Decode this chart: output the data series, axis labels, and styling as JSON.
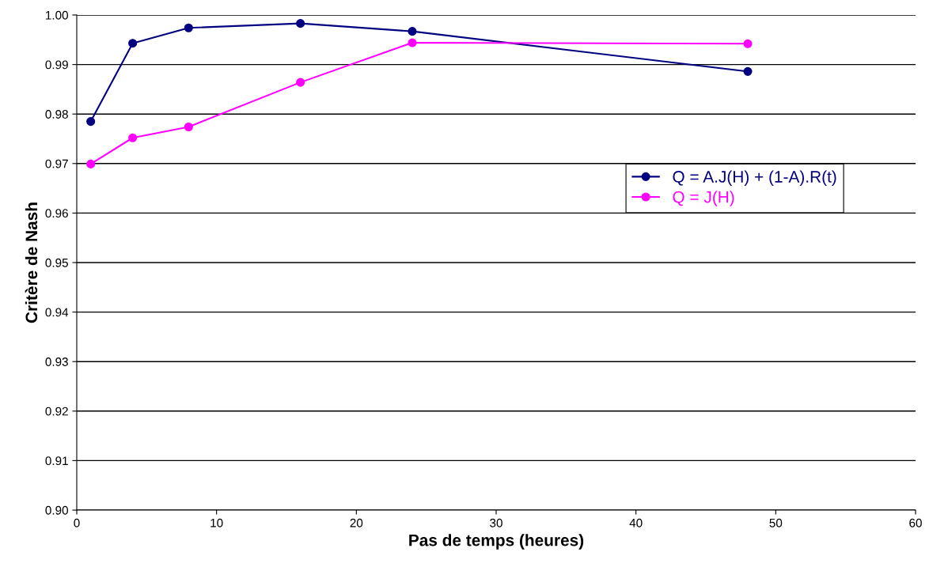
{
  "chart_data": {
    "type": "line",
    "xlabel": "Pas de temps (heures)",
    "ylabel": "Critère de Nash",
    "x": [
      1,
      4,
      8,
      16,
      24,
      48
    ],
    "series": [
      {
        "name": "Q = A.J(H) + (1-A).R(t)",
        "color": "#000080",
        "values": [
          0.9785,
          0.9943,
          0.9974,
          0.9983,
          0.9967,
          0.9886
        ]
      },
      {
        "name": "Q = J(H)",
        "color": "#ff00ff",
        "values": [
          0.9699,
          0.9752,
          0.9774,
          0.9864,
          0.9944,
          0.9942
        ]
      }
    ],
    "xlim": [
      0,
      60
    ],
    "xticks": [
      0,
      10,
      20,
      30,
      40,
      50,
      60
    ],
    "ylim": [
      0.9,
      1.0
    ],
    "yticks": [
      {
        "value": 0.9,
        "label": "0.90"
      },
      {
        "value": 0.91,
        "label": "0.91"
      },
      {
        "value": 0.92,
        "label": "0.92"
      },
      {
        "value": 0.93,
        "label": "0.93"
      },
      {
        "value": 0.94,
        "label": "0.94"
      },
      {
        "value": 0.95,
        "label": "0.95"
      },
      {
        "value": 0.96,
        "label": "0.96"
      },
      {
        "value": 0.97,
        "label": "0.97"
      },
      {
        "value": 0.98,
        "label": "0.98"
      },
      {
        "value": 0.99,
        "label": "0.99"
      },
      {
        "value": 1.0,
        "label": "1.00"
      }
    ],
    "grid": "y",
    "legend": "right",
    "marker": "circle",
    "line_style": "solid"
  }
}
